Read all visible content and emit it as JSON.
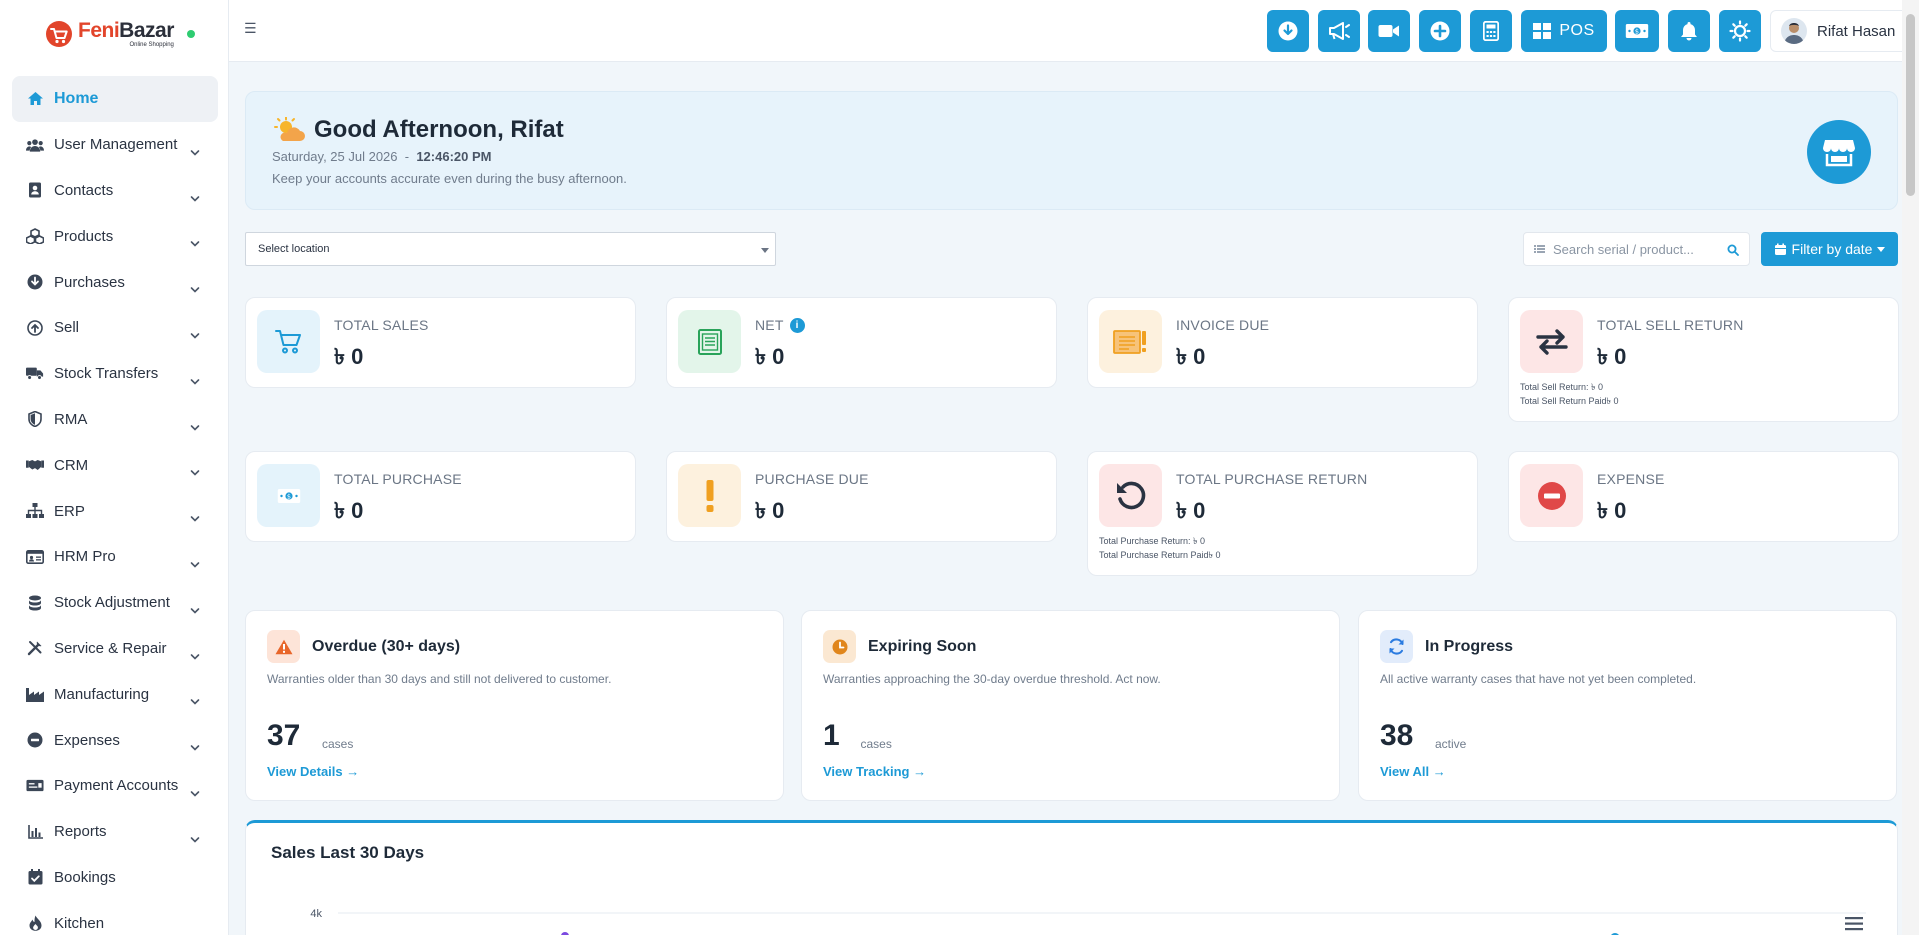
{
  "brand": {
    "name_part1": "Feni",
    "name_part2": "Bazar",
    "tagline": "Online Shopping"
  },
  "sidebar": {
    "items": [
      {
        "label": "Home",
        "icon": "home-icon",
        "active": true,
        "has_children": false
      },
      {
        "label": "User Management",
        "icon": "users-icon",
        "has_children": true
      },
      {
        "label": "Contacts",
        "icon": "address-book-icon",
        "has_children": true
      },
      {
        "label": "Products",
        "icon": "cubes-icon",
        "has_children": true
      },
      {
        "label": "Purchases",
        "icon": "arrow-circle-down-icon",
        "has_children": true
      },
      {
        "label": "Sell",
        "icon": "arrow-circle-up-icon",
        "has_children": true
      },
      {
        "label": "Stock Transfers",
        "icon": "truck-icon",
        "has_children": true
      },
      {
        "label": "RMA",
        "icon": "shield-icon",
        "has_children": true
      },
      {
        "label": "CRM",
        "icon": "handshake-icon",
        "has_children": true
      },
      {
        "label": "ERP",
        "icon": "sitemap-icon",
        "has_children": true
      },
      {
        "label": "HRM Pro",
        "icon": "id-card-icon",
        "has_children": true
      },
      {
        "label": "Stock Adjustment",
        "icon": "database-icon",
        "has_children": true
      },
      {
        "label": "Service & Repair",
        "icon": "tools-icon",
        "has_children": true
      },
      {
        "label": "Manufacturing",
        "icon": "industry-icon",
        "has_children": true
      },
      {
        "label": "Expenses",
        "icon": "minus-circle-icon",
        "has_children": true
      },
      {
        "label": "Payment Accounts",
        "icon": "money-check-icon",
        "has_children": true
      },
      {
        "label": "Reports",
        "icon": "bar-chart-icon",
        "has_children": true
      },
      {
        "label": "Bookings",
        "icon": "calendar-check-icon",
        "has_children": false
      },
      {
        "label": "Kitchen",
        "icon": "fire-icon",
        "has_children": false
      }
    ]
  },
  "header": {
    "toolbar": [
      {
        "icon": "download-icon"
      },
      {
        "icon": "megaphone-icon"
      },
      {
        "icon": "video-icon"
      },
      {
        "icon": "plus-circle-icon"
      },
      {
        "icon": "calculator-icon"
      },
      {
        "icon": "pos-grid-icon",
        "label": "POS"
      },
      {
        "icon": "money-bill-icon"
      },
      {
        "icon": "bell-icon"
      },
      {
        "icon": "sun-gear-icon"
      }
    ],
    "user_name": "Rifat Hasan"
  },
  "greeting": {
    "title": "Good Afternoon, Rifat",
    "date": "Saturday, 25 Jul 2026",
    "separator": "-",
    "time": "12:46:20 PM",
    "message": "Keep your accounts accurate even during the busy afternoon."
  },
  "filters": {
    "location_value": "Select location",
    "search_placeholder": "Search serial / product...",
    "filter_label": "Filter by date"
  },
  "stats": [
    {
      "label": "TOTAL SALES",
      "value": "৳ 0",
      "icon": "cart-icon",
      "color": "#1d9ad6",
      "bg": "#e4f3fb"
    },
    {
      "label": "NET",
      "value": "৳ 0",
      "icon": "ledger-icon",
      "color": "#29a35a",
      "bg": "#e3f5ea",
      "info": "i"
    },
    {
      "label": "INVOICE DUE",
      "value": "৳ 0",
      "icon": "invoice-alert-icon",
      "color": "#f0a020",
      "bg": "#fdf1de"
    },
    {
      "label": "TOTAL SELL RETURN",
      "value": "৳ 0",
      "icon": "exchange-icon",
      "color": "#2a3342",
      "bg": "#fde6e6",
      "sub1": "Total Sell Return: ৳ 0",
      "sub2": "Total Sell Return Paid৳ 0"
    },
    {
      "label": "TOTAL PURCHASE",
      "value": "৳ 0",
      "icon": "money-bill-icon",
      "color": "#1d9ad6",
      "bg": "#e4f3fb"
    },
    {
      "label": "PURCHASE DUE",
      "value": "৳ 0",
      "icon": "exclamation-icon",
      "color": "#f0a020",
      "bg": "#fdf1de"
    },
    {
      "label": "TOTAL PURCHASE RETURN",
      "value": "৳ 0",
      "icon": "undo-icon",
      "color": "#2a3342",
      "bg": "#fde6e6",
      "sub1": "Total Purchase Return: ৳ 0",
      "sub2": "Total Purchase Return Paid৳ 0"
    },
    {
      "label": "EXPENSE",
      "value": "৳ 0",
      "icon": "minus-circle-icon",
      "color": "#e04848",
      "bg": "#fde6e6"
    }
  ],
  "warranty": [
    {
      "title": "Overdue (30+ days)",
      "desc": "Warranties older than 30 days and still not delivered to customer.",
      "count": "37",
      "unit": "cases",
      "link": "View Details →",
      "icon": "warning-icon",
      "color": "#e8662a",
      "bg": "#fde4d8"
    },
    {
      "title": "Expiring Soon",
      "desc": "Warranties approaching the 30-day overdue threshold. Act now.",
      "count": "1",
      "unit": "cases",
      "link": "View Tracking →",
      "icon": "clock-icon",
      "color": "#e0861c",
      "bg": "#fbe8d2"
    },
    {
      "title": "In Progress",
      "desc": "All active warranty cases that have not yet been completed.",
      "count": "38",
      "unit": "active",
      "link": "View All →",
      "icon": "sync-icon",
      "color": "#2b7be0",
      "bg": "#e2ecfb"
    }
  ],
  "chart_data": {
    "type": "line",
    "title": "Sales Last 30 Days",
    "y_tick_labels": [
      "4k"
    ],
    "ylim": [
      0,
      4000
    ],
    "legend_placement": "top-right",
    "colors": [
      "#7b4ae0",
      "#1d9ad6"
    ]
  }
}
